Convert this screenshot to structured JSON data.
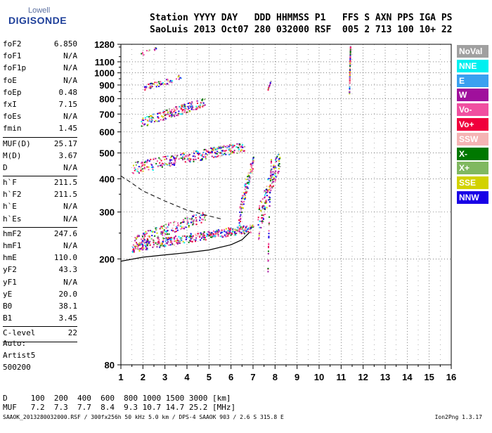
{
  "logo": {
    "line1": "Lowell",
    "line2": "DIGISONDE"
  },
  "header": {
    "line1": "Station YYYY DAY   DDD HHMMSS P1   FFS S AXN PPS IGA PS",
    "line2": "SaoLuis 2013 Oct07 280 032000 RSF  005 2 713 100 10+ 22"
  },
  "params": [
    {
      "label": "foF2",
      "value": "6.850"
    },
    {
      "label": "foF1",
      "value": "N/A"
    },
    {
      "label": "foF1p",
      "value": "N/A"
    },
    {
      "label": "foE",
      "value": "N/A"
    },
    {
      "label": "foEp",
      "value": "0.48"
    },
    {
      "label": "fxI",
      "value": "7.15"
    },
    {
      "label": "foEs",
      "value": "N/A"
    },
    {
      "label": "fmin",
      "value": "1.45",
      "sep": true
    },
    {
      "label": "MUF(D)",
      "value": "25.17"
    },
    {
      "label": "M(D)",
      "value": "3.67"
    },
    {
      "label": "D",
      "value": "N/A",
      "sep": true
    },
    {
      "label": "h`F",
      "value": "211.5"
    },
    {
      "label": "h`F2",
      "value": "211.5"
    },
    {
      "label": "h`E",
      "value": "N/A"
    },
    {
      "label": "h`Es",
      "value": "N/A",
      "sep": true
    },
    {
      "label": "hmF2",
      "value": "247.6"
    },
    {
      "label": "hmF1",
      "value": "N/A"
    },
    {
      "label": "hmE",
      "value": "110.0"
    },
    {
      "label": "yF2",
      "value": "43.3"
    },
    {
      "label": "yF1",
      "value": "N/A"
    },
    {
      "label": "yE",
      "value": "20.0"
    },
    {
      "label": "B0",
      "value": "38.1"
    },
    {
      "label": "B1",
      "value": "3.45",
      "sep": true
    },
    {
      "label": "C-level",
      "value": "22",
      "sep": true
    }
  ],
  "auto": {
    "line1": "Auto:",
    "line2": "Artist5",
    "line3": "500200"
  },
  "muf_table": {
    "d_line": "D     100  200  400  600  800 1000 1500 3000 [km]",
    "muf_line": "MUF   7.2  7.3  7.7  8.4  9.3 10.7 14.7 25.2 [MHz]"
  },
  "footer": {
    "left": "SAAOK_2013280032000.RSF / 300fx256h 50 kHz 5.0 km / DPS-4 SAAOK 903 / 2.6 S 315.8 E",
    "right": "Ion2Png 1.3.17"
  },
  "legend": [
    {
      "label": "NoVal",
      "color": "#a0a0a0"
    },
    {
      "label": "NNE",
      "color": "#00f0f0"
    },
    {
      "label": "E",
      "color": "#3aa0f0"
    },
    {
      "label": "W",
      "color": "#a0109c"
    },
    {
      "label": "Vo-",
      "color": "#f050a0"
    },
    {
      "label": "Vo+",
      "color": "#f0003c"
    },
    {
      "label": "SSW",
      "color": "#f5b4b4"
    },
    {
      "label": "X-",
      "color": "#007800"
    },
    {
      "label": "X+",
      "color": "#80b860"
    },
    {
      "label": "SSE",
      "color": "#d2d200"
    },
    {
      "label": "NNW",
      "color": "#1800e6"
    }
  ],
  "chart_data": {
    "type": "scatter",
    "title": "",
    "xlabel": "",
    "ylabel": "",
    "xlim": [
      1,
      16
    ],
    "ylim": [
      80,
      1280
    ],
    "y_scale": "log",
    "grid": true,
    "legend_position": "right",
    "x_ticks": [
      "1",
      "2",
      "3",
      "4",
      "5",
      "6",
      "7",
      "8",
      "9",
      "10",
      "11",
      "12",
      "13",
      "14",
      "15",
      "16"
    ],
    "y_ticks": [
      {
        "value": 80,
        "label": "80"
      },
      {
        "value": 200,
        "label": "200"
      },
      {
        "value": 300,
        "label": "300"
      },
      {
        "value": 400,
        "label": "400"
      },
      {
        "value": 500,
        "label": "500"
      },
      {
        "value": 600,
        "label": "600"
      },
      {
        "value": 700,
        "label": "700"
      },
      {
        "value": 800,
        "label": "800"
      },
      {
        "value": 900,
        "label": "900"
      },
      {
        "value": 1000,
        "label": "1000"
      },
      {
        "value": 1100,
        "label": "1100"
      },
      {
        "value": 1280,
        "label": "1280"
      }
    ],
    "echo_traces": [
      {
        "f1": 1.5,
        "f2": 7.0,
        "h1": 222,
        "h2": 262,
        "spread": 18,
        "density": 380
      },
      {
        "f1": 1.6,
        "f2": 4.8,
        "h1": 235,
        "h2": 290,
        "spread": 25,
        "density": 180
      },
      {
        "f1": 1.5,
        "f2": 6.6,
        "h1": 440,
        "h2": 530,
        "spread": 45,
        "density": 300
      },
      {
        "f1": 1.9,
        "f2": 4.8,
        "h1": 650,
        "h2": 780,
        "spread": 60,
        "density": 180
      },
      {
        "f1": 2.0,
        "f2": 3.8,
        "h1": 880,
        "h2": 970,
        "spread": 45,
        "density": 60
      },
      {
        "f1": 1.9,
        "f2": 2.6,
        "h1": 1180,
        "h2": 1250,
        "spread": 40,
        "density": 12
      },
      {
        "f1": 6.3,
        "f2": 7.0,
        "h1": 270,
        "h2": 470,
        "spread": 50,
        "density": 120
      },
      {
        "f1": 7.2,
        "f2": 8.2,
        "h1": 270,
        "h2": 480,
        "spread": 80,
        "density": 140
      },
      {
        "f1": 7.65,
        "f2": 7.8,
        "h1": 180,
        "h2": 470,
        "spread": 10,
        "density": 45
      },
      {
        "f1": 7.65,
        "f2": 7.8,
        "h1": 870,
        "h2": 940,
        "spread": 10,
        "density": 10
      },
      {
        "f1": 11.35,
        "f2": 11.4,
        "h1": 840,
        "h2": 1275,
        "spread": 5,
        "density": 90
      }
    ],
    "f2_trace": {
      "foF2": 6.85,
      "hpF": 211.5,
      "points": [
        [
          1,
          196
        ],
        [
          2,
          203
        ],
        [
          3,
          207
        ],
        [
          4,
          211
        ],
        [
          5,
          216
        ],
        [
          6,
          226
        ],
        [
          6.5,
          236
        ],
        [
          6.85,
          252
        ]
      ]
    },
    "profile_curve": {
      "points": [
        [
          1,
          410
        ],
        [
          1.5,
          385
        ],
        [
          2,
          360
        ],
        [
          3,
          330
        ],
        [
          4,
          305
        ],
        [
          5,
          290
        ],
        [
          5.6,
          282
        ]
      ]
    }
  }
}
